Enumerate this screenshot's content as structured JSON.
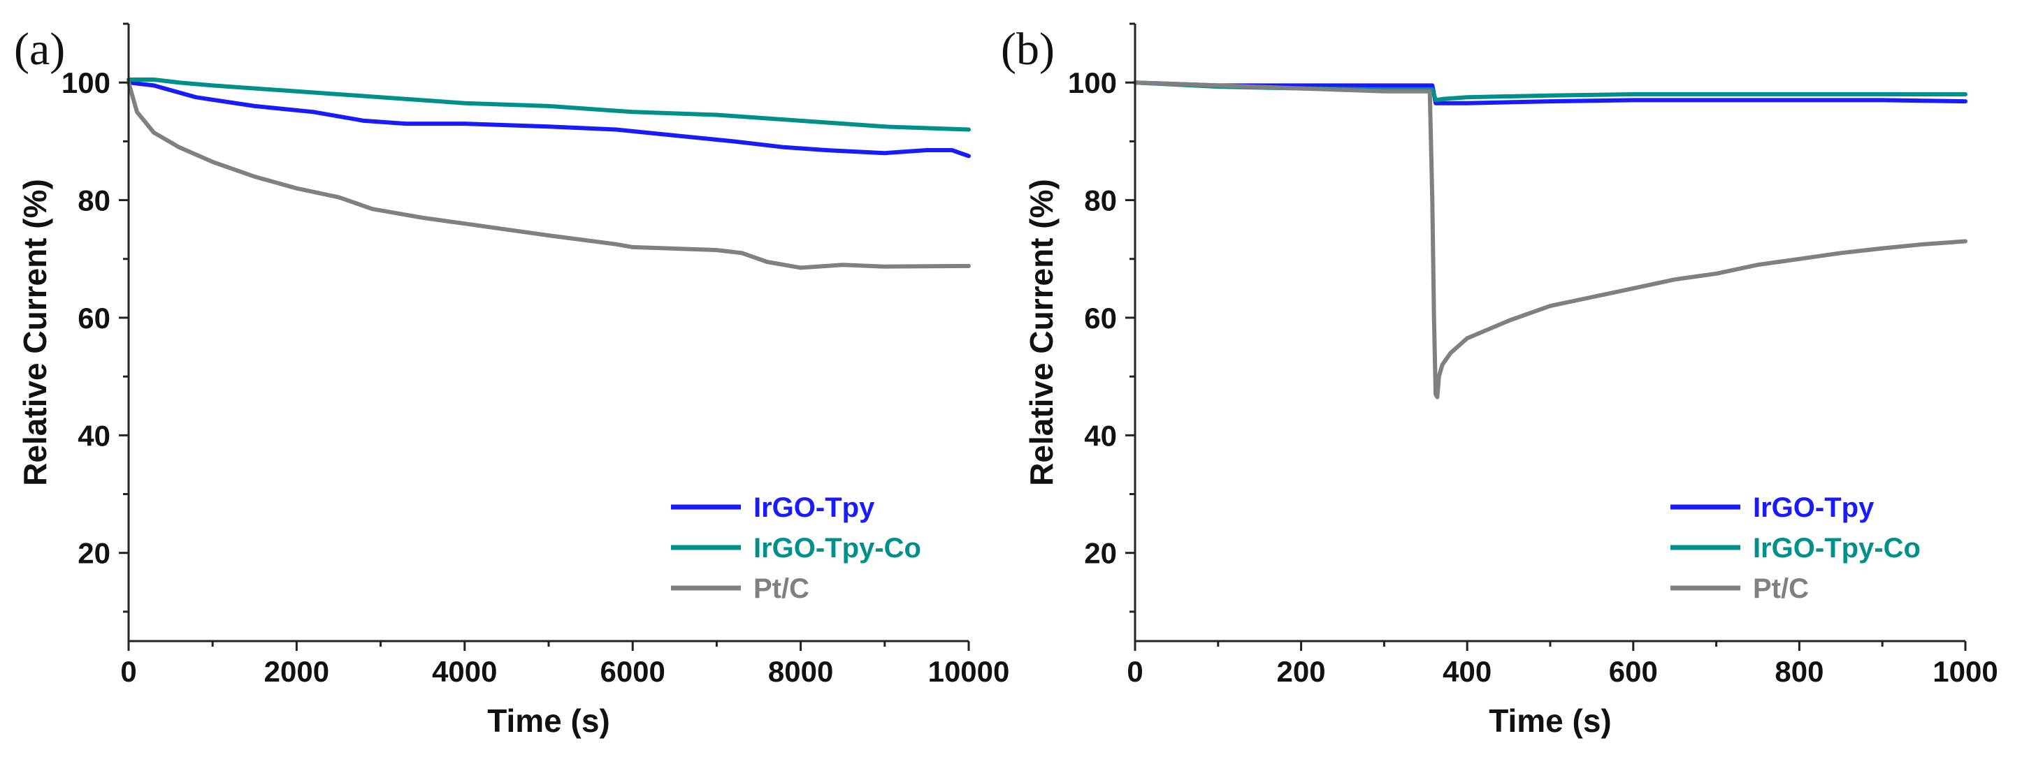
{
  "chart_data": [
    {
      "panel_label": "(a)",
      "type": "line",
      "xlabel": "Time (s)",
      "ylabel": "Relative Current (%)",
      "xlim": [
        0,
        10000
      ],
      "ylim": [
        5,
        110
      ],
      "xticks": [
        0,
        2000,
        4000,
        6000,
        8000,
        10000
      ],
      "yticks": [
        20,
        40,
        60,
        80,
        100
      ],
      "legend_position": "bottom-right",
      "series": [
        {
          "name": "IrGO-Tpy",
          "color": "#1a1aff",
          "x": [
            0,
            300,
            800,
            1500,
            2200,
            2800,
            3300,
            4000,
            5000,
            5800,
            6500,
            7200,
            7800,
            8300,
            9000,
            9500,
            9800,
            10000
          ],
          "y": [
            100,
            99.5,
            97.5,
            96,
            95,
            93.5,
            93,
            93,
            92.5,
            92,
            91,
            90,
            89,
            88.5,
            88,
            88.5,
            88.5,
            87.5
          ]
        },
        {
          "name": "IrGO-Tpy-Co",
          "color": "#00908c",
          "x": [
            0,
            300,
            600,
            1000,
            2000,
            3000,
            4000,
            5000,
            6000,
            7000,
            8000,
            9000,
            10000
          ],
          "y": [
            100.5,
            100.5,
            100,
            99.5,
            98.5,
            97.5,
            96.5,
            96,
            95,
            94.5,
            93.5,
            92.5,
            92
          ]
        },
        {
          "name": "Pt/C",
          "color": "#808080",
          "x": [
            0,
            100,
            300,
            600,
            1000,
            1500,
            2000,
            2500,
            2900,
            3500,
            4000,
            4500,
            5000,
            5800,
            6000,
            7000,
            7300,
            7600,
            8000,
            8200,
            8500,
            9000,
            10000
          ],
          "y": [
            100,
            95,
            91.5,
            89,
            86.5,
            84,
            82,
            80.5,
            78.5,
            77,
            76,
            75,
            74,
            72.5,
            72,
            71.5,
            71,
            69.5,
            68.5,
            68.7,
            69,
            68.7,
            68.8
          ]
        }
      ]
    },
    {
      "panel_label": "(b)",
      "type": "line",
      "xlabel": "Time (s)",
      "ylabel": "Relative Current (%)",
      "xlim": [
        0,
        1000
      ],
      "ylim": [
        5,
        110
      ],
      "xticks": [
        0,
        200,
        400,
        600,
        800,
        1000
      ],
      "yticks": [
        20,
        40,
        60,
        80,
        100
      ],
      "legend_position": "bottom-right",
      "series": [
        {
          "name": "IrGO-Tpy",
          "color": "#1a1aff",
          "x": [
            0,
            100,
            200,
            300,
            358,
            362,
            370,
            400,
            500,
            600,
            700,
            800,
            900,
            1000
          ],
          "y": [
            100,
            99.5,
            99.5,
            99.5,
            99.5,
            96.5,
            96.5,
            96.5,
            96.8,
            97,
            97,
            97,
            97,
            96.8
          ]
        },
        {
          "name": "IrGO-Tpy-Co",
          "color": "#00908c",
          "x": [
            0,
            100,
            200,
            300,
            358,
            362,
            370,
            400,
            500,
            600,
            700,
            800,
            900,
            1000
          ],
          "y": [
            100,
            99.3,
            99,
            98.8,
            98.8,
            97,
            97.2,
            97.5,
            97.8,
            98,
            98,
            98,
            98,
            98
          ]
        },
        {
          "name": "Pt/C",
          "color": "#808080",
          "x": [
            0,
            100,
            200,
            300,
            355,
            358,
            360,
            362,
            364,
            366,
            370,
            380,
            400,
            450,
            500,
            550,
            600,
            650,
            700,
            750,
            800,
            850,
            900,
            950,
            1000
          ],
          "y": [
            100,
            99.5,
            99,
            98.5,
            98.5,
            80,
            60,
            47,
            46.5,
            50,
            52,
            54,
            56.5,
            59.5,
            62,
            63.5,
            65,
            66.5,
            67.5,
            69,
            70,
            71,
            71.8,
            72.5,
            73
          ]
        }
      ]
    }
  ]
}
